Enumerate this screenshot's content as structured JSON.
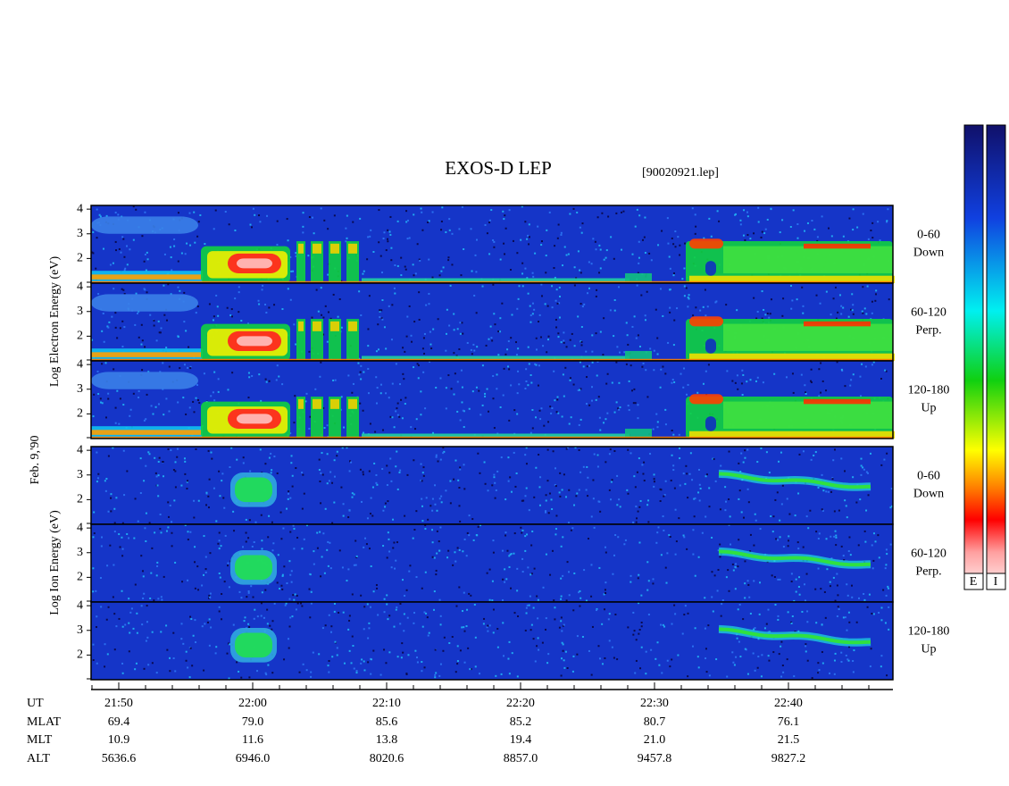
{
  "title": "EXOS-D LEP",
  "file": "[90020921.lep]",
  "date_label": "Feb. 9,'90",
  "groups": [
    {
      "label": "Log  Electron  Energy (eV)"
    },
    {
      "label": "Log  Ion  Energy (eV)"
    }
  ],
  "panels": [
    {
      "range": "0-60",
      "direction": "Down"
    },
    {
      "range": "60-120",
      "direction": "Perp."
    },
    {
      "range": "120-180",
      "direction": "Up"
    },
    {
      "range": "0-60",
      "direction": "Down"
    },
    {
      "range": "60-120",
      "direction": "Perp."
    },
    {
      "range": "120-180",
      "direction": "Up"
    }
  ],
  "ylim": [
    1,
    4.15
  ],
  "yticks": [
    2,
    3,
    4
  ],
  "time_axis": {
    "rows": [
      {
        "name": "UT",
        "values": [
          "21:50",
          "22:00",
          "22:10",
          "22:20",
          "22:30",
          "22:40"
        ]
      },
      {
        "name": "MLAT",
        "values": [
          "69.4",
          "79.0",
          "85.6",
          "85.2",
          "80.7",
          "76.1"
        ]
      },
      {
        "name": "MLT",
        "values": [
          "10.9",
          "11.6",
          "13.8",
          "19.4",
          "21.0",
          "21.5"
        ]
      },
      {
        "name": "ALT",
        "values": [
          "5636.6",
          "6946.0",
          "8020.6",
          "8857.0",
          "9457.8",
          "9827.2"
        ]
      }
    ]
  },
  "colorbars": [
    "E",
    "I"
  ]
}
